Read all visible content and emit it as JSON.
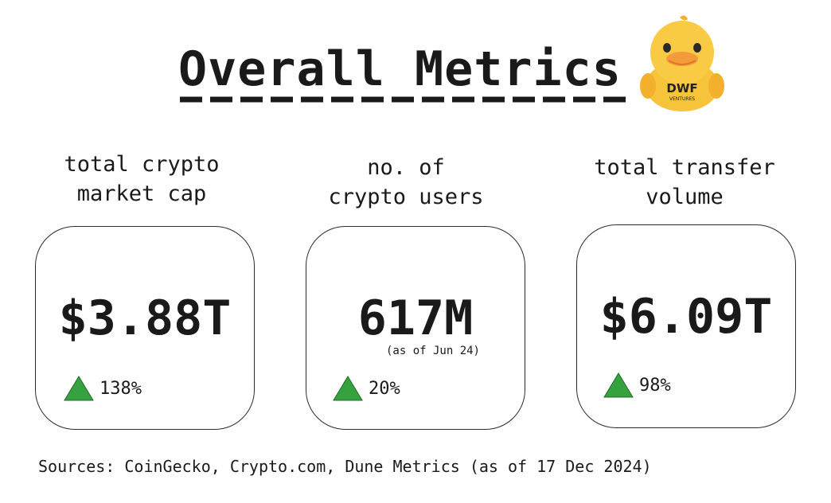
{
  "title": "Overall Metrics",
  "mascot": {
    "icon": "duck-mascot-icon",
    "badge_text": "DWF",
    "badge_subtext": "VENTURES"
  },
  "metrics": [
    {
      "label": "total crypto\nmarket cap",
      "value": "$3.88T",
      "note": "",
      "change": "138%",
      "trend_icon": "triangle-up-icon"
    },
    {
      "label": "no. of\ncrypto users",
      "value": "617M",
      "note": "(as of Jun 24)",
      "change": "20%",
      "trend_icon": "triangle-up-icon"
    },
    {
      "label": "total transfer\nvolume",
      "value": "$6.09T",
      "note": "",
      "change": "98%",
      "trend_icon": "triangle-up-icon"
    }
  ],
  "colors": {
    "up": "#35a23f",
    "duck": "#f7c33a",
    "beak": "#f59a3a"
  },
  "sources": "Sources: CoinGecko, Crypto.com, Dune Metrics (as of 17 Dec 2024)"
}
